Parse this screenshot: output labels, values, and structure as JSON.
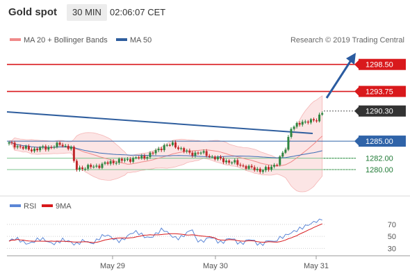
{
  "header": {
    "title": "Gold spot",
    "interval": "30 MIN",
    "time": "02:06:07 CET"
  },
  "legend": {
    "ma20": "MA 20 + Bollinger Bands",
    "ma50": "MA 50",
    "source": "Research © 2019 Trading Central"
  },
  "rsi_legend": {
    "rsi": "RSI",
    "ma9": "9MA"
  },
  "colors": {
    "up": "#2e8540",
    "down": "#c0282a",
    "resistance": "#d9191c",
    "support": "#2f63a8",
    "arrow": "#2a5ba0",
    "bollinger_fill": "#fbdada",
    "ma20": "#f08a8a",
    "ma50": "#3a6cb5",
    "rsi": "#5b86d6",
    "rsi_ma": "#d8191c"
  },
  "chart_data": {
    "type": "candlestick",
    "ylim": [
      1276.2,
      1300.3
    ],
    "x_ticks": [
      "May 29",
      "May 30",
      "May 31"
    ],
    "levels": [
      {
        "name": "resistance-2",
        "value": 1298.5,
        "label": "1298.50",
        "style": "resistance"
      },
      {
        "name": "resistance-1",
        "value": 1293.75,
        "label": "1293.75",
        "style": "resistance"
      },
      {
        "name": "last-price",
        "value": 1290.3,
        "label": "1290.30",
        "style": "last"
      },
      {
        "name": "pivot",
        "value": 1285.0,
        "label": "1285.00",
        "style": "pivot"
      },
      {
        "name": "support-1",
        "value": 1282.0,
        "label": "1282.00",
        "style": "support"
      },
      {
        "name": "support-2",
        "value": 1280.0,
        "label": "1280.00",
        "style": "support"
      }
    ],
    "rsi": {
      "ylim": [
        20,
        85
      ],
      "ticks": [
        70,
        50,
        30
      ]
    }
  }
}
